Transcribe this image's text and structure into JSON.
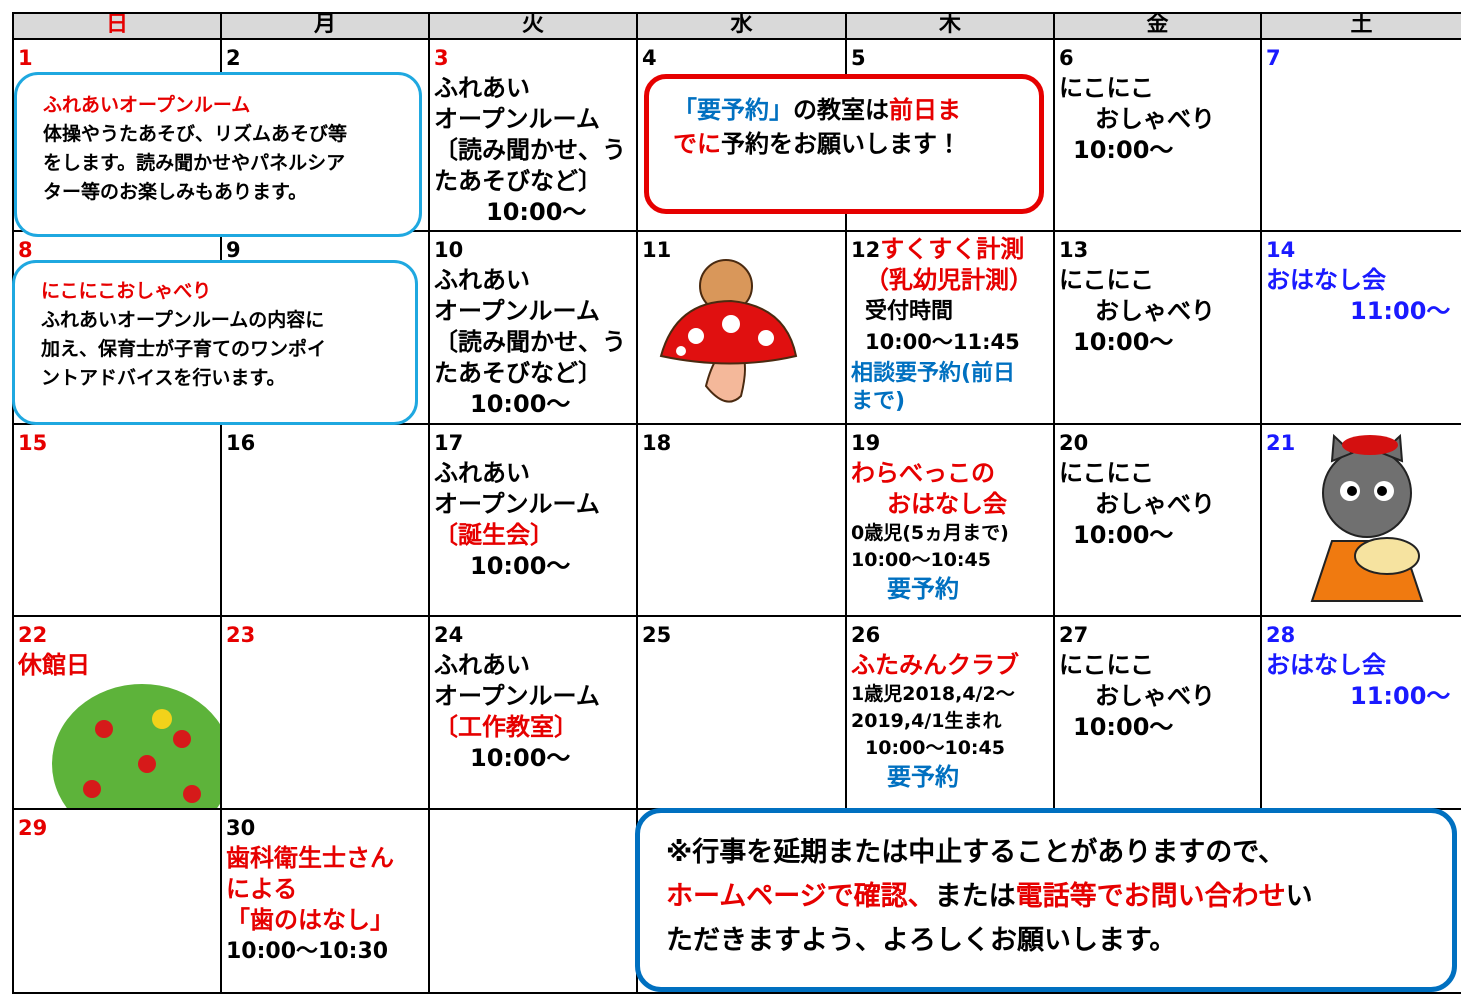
{
  "header": [
    "日",
    "月",
    "火",
    "水",
    "木",
    "金",
    "土"
  ],
  "weeks": [
    [
      {
        "day": "1"
      },
      {
        "day": "2"
      },
      {
        "day": "3",
        "lines": [
          "ふれあい",
          "オープンルーム",
          "〔読み聞かせ、う",
          "たあそびなど〕",
          "10:00〜"
        ]
      },
      {
        "day": "4"
      },
      {
        "day": "5"
      },
      {
        "day": "6",
        "lines": [
          "にこにこ",
          "おしゃべり",
          "10:00〜"
        ]
      },
      {
        "day": "7"
      }
    ],
    [
      {
        "day": "8"
      },
      {
        "day": "9"
      },
      {
        "day": "10",
        "lines": [
          "ふれあい",
          "オープンルーム",
          "〔読み聞かせ、う",
          "たあそびなど〕",
          "10:00〜"
        ]
      },
      {
        "day": "11"
      },
      {
        "day": "12",
        "lines": [
          "すくすく計測",
          "（乳幼児計測）",
          "受付時間",
          "10:00〜11:45",
          "相談要予約(前日",
          "まで)"
        ]
      },
      {
        "day": "13",
        "lines": [
          "にこにこ",
          "おしゃべり",
          "10:00〜"
        ]
      },
      {
        "day": "14",
        "lines": [
          "おはなし会",
          "11:00〜"
        ]
      }
    ],
    [
      {
        "day": "15"
      },
      {
        "day": "16"
      },
      {
        "day": "17",
        "lines": [
          "ふれあい",
          "オープンルーム",
          "〔誕生会〕",
          "10:00〜"
        ]
      },
      {
        "day": "18"
      },
      {
        "day": "19",
        "lines": [
          "わらべっこの",
          "おはなし会",
          "0歳児(5ヵ月まで)",
          "10:00〜10:45",
          "要予約"
        ]
      },
      {
        "day": "20",
        "lines": [
          "にこにこ",
          "おしゃべり",
          "10:00〜"
        ]
      },
      {
        "day": "21"
      }
    ],
    [
      {
        "day": "22",
        "lines": [
          "休館日"
        ]
      },
      {
        "day": "23"
      },
      {
        "day": "24",
        "lines": [
          "ふれあい",
          "オープンルーム",
          "〔工作教室〕",
          "10:00〜"
        ]
      },
      {
        "day": "25"
      },
      {
        "day": "26",
        "lines": [
          "ふたみんクラブ",
          "1歳児2018,4/2〜",
          "2019,4/1生まれ",
          "10:00〜10:45",
          "要予約"
        ]
      },
      {
        "day": "27",
        "lines": [
          "にこにこ",
          "おしゃべり",
          "10:00〜"
        ]
      },
      {
        "day": "28",
        "lines": [
          "おはなし会",
          "11:00〜"
        ]
      }
    ],
    [
      {
        "day": "29"
      },
      {
        "day": "30",
        "lines": [
          "歯科衛生士さん",
          "による",
          "「歯のはなし」",
          "10:00〜10:30"
        ]
      }
    ]
  ],
  "notes": [
    {
      "title": "ふれあいオープンルーム",
      "body": [
        "体操やうたあそび、リズムあそび等",
        "をします。読み聞かせやパネルシア",
        "ター等のお楽しみもあります。"
      ]
    },
    {
      "title": "にこにこおしゃべり",
      "body": [
        "ふれあいオープンルームの内容に",
        "加え、保育士が子育てのワンポイ",
        "ントアドバイスを行います。"
      ]
    }
  ],
  "reservation_note": [
    "「要予約」",
    "の教室は",
    "前日ま",
    "でに",
    "予約をお願いします！"
  ],
  "bottom_note": [
    "※行事を延期または中止することがありますので、",
    "ホームページで確認、",
    "または",
    "電話等でお問い合わせ",
    "い",
    "ただきますよう、よろしくお願いします。"
  ]
}
